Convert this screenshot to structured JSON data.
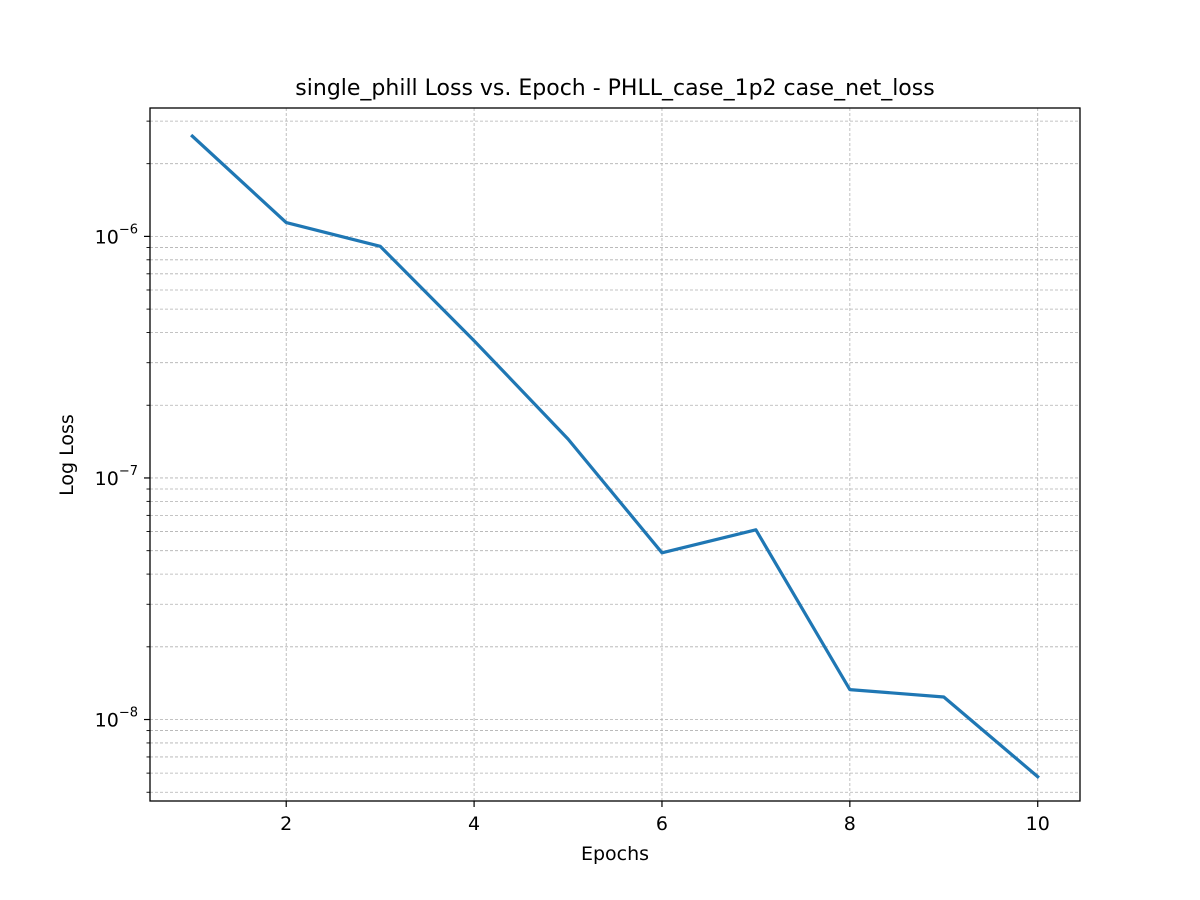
{
  "chart_data": {
    "type": "line",
    "title": "single_phill Loss vs. Epoch - PHLL_case_1p2 case_net_loss",
    "xlabel": "Epochs",
    "ylabel": "Log Loss",
    "x_scale": "linear",
    "y_scale": "log",
    "xlim": [
      0.55,
      10.45
    ],
    "ylim": [
      4.6e-09,
      3.4e-06
    ],
    "x_ticks": [
      {
        "value": 2,
        "label": "2"
      },
      {
        "value": 4,
        "label": "4"
      },
      {
        "value": 6,
        "label": "6"
      },
      {
        "value": 8,
        "label": "8"
      },
      {
        "value": 10,
        "label": "10"
      }
    ],
    "y_ticks": [
      {
        "value": 1e-06,
        "base": "10",
        "exp": "−6"
      },
      {
        "value": 1e-07,
        "base": "10",
        "exp": "−7"
      },
      {
        "value": 1e-08,
        "base": "10",
        "exp": "−8"
      }
    ],
    "grid": true,
    "grid_style": "dashed",
    "series": [
      {
        "color": "#1f77b4",
        "x": [
          1,
          2,
          3,
          4,
          5,
          6,
          7,
          8,
          9,
          10
        ],
        "y": [
          2.6e-06,
          1.14e-06,
          9.1e-07,
          3.7e-07,
          1.45e-07,
          4.9e-08,
          6.1e-08,
          1.33e-08,
          1.24e-08,
          5.8e-09
        ]
      }
    ]
  }
}
